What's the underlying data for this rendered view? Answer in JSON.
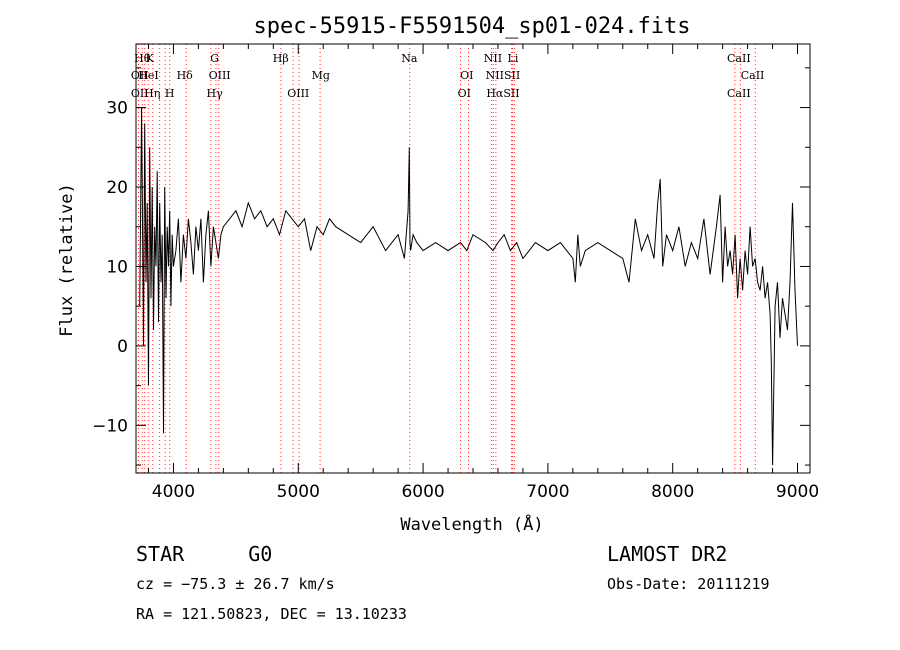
{
  "chart_data": {
    "type": "line",
    "title": "spec-55915-F5591504_sp01-024.fits",
    "xlabel": "Wavelength (Å)",
    "ylabel": "Flux (relative)",
    "xlim": [
      3700,
      9100
    ],
    "ylim": [
      -16,
      38
    ],
    "xticks": [
      4000,
      5000,
      6000,
      7000,
      8000,
      9000
    ],
    "yticks": [
      -10,
      0,
      10,
      20,
      30
    ],
    "grid": false,
    "line_color": "#000000",
    "marker_color": "#ff3030",
    "series": [
      {
        "x": [
          3730,
          3745,
          3760,
          3770,
          3780,
          3790,
          3800,
          3810,
          3820,
          3830,
          3840,
          3850,
          3860,
          3870,
          3880,
          3890,
          3900,
          3910,
          3920,
          3930,
          3940,
          3950,
          3960,
          3970,
          3980,
          3990,
          4000,
          4020,
          4040,
          4060,
          4080,
          4100,
          4120,
          4140,
          4160,
          4180,
          4200,
          4220,
          4240,
          4260,
          4280,
          4300,
          4320,
          4340,
          4360,
          4380,
          4400,
          4450,
          4500,
          4550,
          4600,
          4650,
          4700,
          4750,
          4800,
          4850,
          4900,
          4950,
          5000,
          5050,
          5100,
          5150,
          5200,
          5250,
          5300,
          5400,
          5500,
          5600,
          5700,
          5800,
          5850,
          5880,
          5890,
          5895,
          5900,
          5920,
          5950,
          6000,
          6100,
          6200,
          6300,
          6350,
          6400,
          6500,
          6560,
          6600,
          6650,
          6700,
          6750,
          6800,
          6850,
          6900,
          7000,
          7100,
          7200,
          7220,
          7240,
          7260,
          7300,
          7400,
          7500,
          7600,
          7650,
          7700,
          7750,
          7800,
          7850,
          7880,
          7900,
          7920,
          7950,
          8000,
          8050,
          8100,
          8150,
          8200,
          8250,
          8300,
          8350,
          8380,
          8400,
          8420,
          8440,
          8460,
          8480,
          8500,
          8520,
          8540,
          8560,
          8580,
          8600,
          8620,
          8640,
          8660,
          8680,
          8700,
          8720,
          8740,
          8760,
          8780,
          8790,
          8800,
          8820,
          8840,
          8860,
          8880,
          8900,
          8920,
          8940,
          8960,
          8980,
          9000
        ],
        "y": [
          5,
          30,
          0,
          28,
          8,
          18,
          -5,
          25,
          6,
          20,
          2,
          15,
          10,
          22,
          3,
          18,
          8,
          14,
          -11,
          20,
          6,
          15,
          10,
          17,
          5,
          14,
          10,
          12,
          16,
          8,
          14,
          11,
          16,
          13,
          9,
          15,
          12,
          16,
          8,
          14,
          17,
          10,
          15,
          13,
          11,
          14,
          15,
          16,
          17,
          15,
          18,
          16,
          17,
          15,
          16,
          14,
          17,
          16,
          15,
          16,
          12,
          15,
          14,
          16,
          15,
          14,
          13,
          15,
          12,
          14,
          11,
          17,
          25,
          13,
          12,
          14,
          13,
          12,
          13,
          12,
          13,
          12,
          14,
          13,
          12,
          13,
          14,
          12,
          13,
          11,
          12,
          13,
          12,
          13,
          11,
          8,
          14,
          10,
          12,
          13,
          12,
          11,
          8,
          16,
          12,
          14,
          11,
          18,
          21,
          10,
          14,
          12,
          15,
          10,
          13,
          11,
          16,
          9,
          15,
          19,
          8,
          15,
          10,
          12,
          9,
          14,
          6,
          11,
          7,
          12,
          9,
          15,
          10,
          11,
          8,
          7,
          10,
          6,
          8,
          4,
          -2,
          -15,
          5,
          8,
          1,
          6,
          4,
          2,
          8,
          18,
          7,
          0
        ],
        "markers": [
          3720,
          3750,
          3770,
          3798,
          3835,
          3889,
          3934,
          3970,
          4102,
          4300,
          4340,
          4363,
          4861,
          4959,
          5007,
          5175,
          5893,
          6300,
          6364,
          6548,
          6563,
          6583,
          6708,
          6716,
          6731,
          8498,
          8542,
          8662
        ],
        "marker_labels_row1": [
          "Hθ",
          "K",
          "G",
          "Hβ",
          "Na",
          "NII",
          "Li",
          "CaII"
        ],
        "marker_labels_row2": [
          "OII",
          "HeI",
          "Hδ",
          "OIII",
          "Mg",
          "OI",
          "NIISII",
          "CaII"
        ],
        "marker_labels_row3": [
          "OII",
          "Hη",
          "H",
          "Hγ",
          "OIII",
          "OI",
          "HαSII",
          "CaII"
        ]
      }
    ]
  },
  "info": {
    "object_type": "STAR",
    "subclass": "G0",
    "survey": "LAMOST DR2",
    "cz": "cz = −75.3 ± 26.7 km/s",
    "obs_date": "Obs-Date: 20111219",
    "radec": "RA = 121.50823, DEC =  13.10233"
  }
}
